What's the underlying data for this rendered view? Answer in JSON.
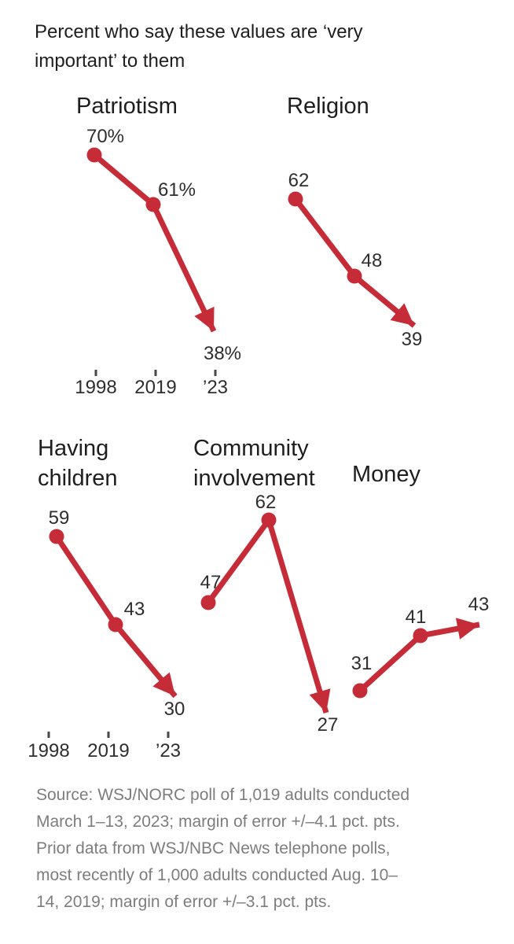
{
  "header": {
    "title": "Percent who say these values are ‘very important’ to them"
  },
  "chart_data": {
    "type": "line",
    "title": "Percent who say these values are ‘very important’ to them",
    "x": [
      1998,
      2019,
      2023
    ],
    "x_tick_labels": [
      "1998",
      "2019",
      "’23"
    ],
    "unit": "percent",
    "line_color": "#c62c38",
    "arrow_end": true,
    "grid": false,
    "legend": "none",
    "layout_hint": "five small multiples, shared value scale, x axis shown under Patriotism and Having children only",
    "series": [
      {
        "name": "Patriotism",
        "values": [
          70,
          61,
          38
        ],
        "labels": [
          "70%",
          "61%",
          "38%"
        ]
      },
      {
        "name": "Religion",
        "values": [
          62,
          48,
          39
        ],
        "labels": [
          "62",
          "48",
          "39"
        ]
      },
      {
        "name": "Having children",
        "values": [
          59,
          43,
          30
        ],
        "labels": [
          "59",
          "43",
          "30"
        ]
      },
      {
        "name": "Community involvement",
        "values": [
          47,
          62,
          27
        ],
        "labels": [
          "47",
          "62",
          "27"
        ]
      },
      {
        "name": "Money",
        "values": [
          31,
          41,
          43
        ],
        "labels": [
          "31",
          "41",
          "43"
        ]
      }
    ]
  },
  "source": {
    "lines": [
      "Source: WSJ/NORC poll of 1,019 adults conducted",
      "March 1–13, 2023; margin of error +/–4.1 pct. pts.",
      "Prior data from WSJ/NBC News telephone polls,",
      "most recently of 1,000 adults conducted Aug. 10–",
      "14, 2019; margin of error +/–3.1 pct. pts."
    ]
  },
  "colors": {
    "line": "#c62c38",
    "title_text": "#1e1e1e",
    "label_text": "#2e2e2e",
    "source_text": "#7d7d7d",
    "tick": "#464646",
    "background": "#ffffff"
  }
}
